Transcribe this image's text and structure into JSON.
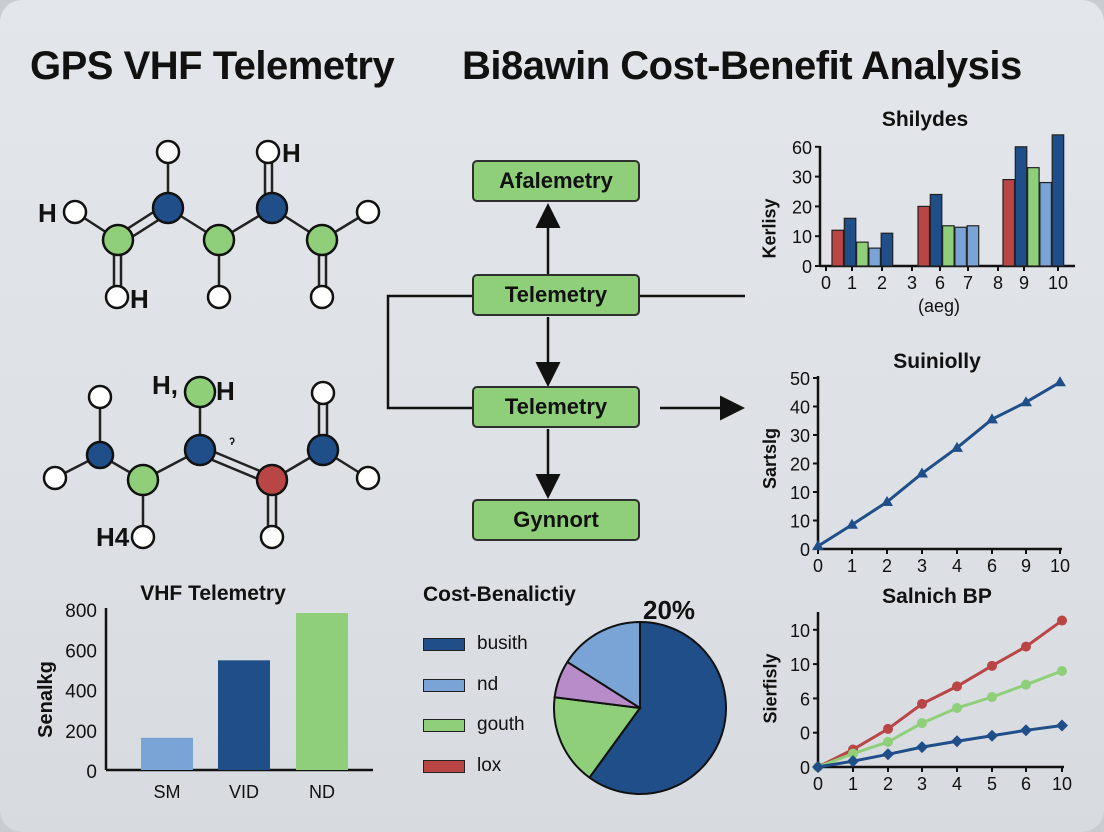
{
  "titles": {
    "left": "GPS VHF Telemetry",
    "right": "Bi8awin Cost-Benefit Analysis"
  },
  "molecules": {
    "labels": [
      "H",
      "H",
      "H",
      "H,",
      "H",
      "H4",
      "ˀ"
    ]
  },
  "flowchart": {
    "boxes": [
      "Afalemetry",
      "Telemetry",
      "Telemetry",
      "Gynnort"
    ],
    "box_color": "#8fcf79"
  },
  "colors": {
    "dark_blue": "#1f4e89",
    "light_blue": "#7aa3d6",
    "green": "#8fcf79",
    "red": "#b94545",
    "purple": "#b88cc8"
  },
  "chart_data": [
    {
      "type": "bar",
      "title": "Shilydes",
      "ylabel": "Kerlisy",
      "xlabel": "(aeg)",
      "x_tick_labels": [
        "0",
        "1",
        "2",
        "3",
        "6",
        "7",
        "8",
        "9",
        "10"
      ],
      "y_tick_labels": [
        "0",
        "10",
        "20",
        "30",
        "60"
      ],
      "groups": [
        {
          "values": [
            12,
            16,
            8,
            6,
            11
          ],
          "colors": [
            "#b94545",
            "#1f4e89",
            "#8fcf79",
            "#7aa3d6",
            "#1f4e89"
          ]
        },
        {
          "values": [
            20,
            24,
            13.5,
            13,
            13.5
          ],
          "colors": [
            "#b94545",
            "#1f4e89",
            "#8fcf79",
            "#7aa3d6",
            "#7aa3d6"
          ]
        },
        {
          "values": [
            29,
            60,
            39,
            28,
            72
          ],
          "colors": [
            "#b94545",
            "#1f4e89",
            "#8fcf79",
            "#7aa3d6",
            "#1f4e89"
          ]
        }
      ]
    },
    {
      "type": "line",
      "title": "Suiniolly",
      "ylabel": "Sartslg",
      "x_tick_labels": [
        "0",
        "1",
        "2",
        "3",
        "4",
        "6",
        "9",
        "10"
      ],
      "y_tick_labels": [
        "0",
        "10",
        "10",
        "20",
        "30",
        "40",
        "50"
      ],
      "series": [
        {
          "color": "#1f4e89",
          "marker": "triangle",
          "values": [
            0.1,
            0.85,
            1.65,
            2.65,
            3.55,
            4.55,
            5.15,
            5.85
          ]
        }
      ]
    },
    {
      "type": "line",
      "title": "Salnich BP",
      "ylabel": "Sierfisly",
      "x_tick_labels": [
        "0",
        "1",
        "2",
        "3",
        "4",
        "5",
        "6",
        "10"
      ],
      "y_tick_labels": [
        "0",
        "0",
        "6",
        "10",
        "10"
      ],
      "series": [
        {
          "color": "#b94545",
          "marker": "circle",
          "values": [
            0,
            0.51,
            1.11,
            1.84,
            2.35,
            2.95,
            3.51,
            4.27
          ]
        },
        {
          "color": "#8fcf79",
          "marker": "circle",
          "values": [
            0,
            0.39,
            0.73,
            1.28,
            1.72,
            2.04,
            2.4,
            2.8
          ]
        },
        {
          "color": "#1f4e89",
          "marker": "diamond",
          "values": [
            0,
            0.17,
            0.37,
            0.58,
            0.75,
            0.91,
            1.07,
            1.21
          ]
        }
      ]
    },
    {
      "type": "bar",
      "title": "VHF Telemetry",
      "ylabel": "Senalkg",
      "categories": [
        "SM",
        "VID",
        "ND"
      ],
      "values": [
        160,
        545,
        780
      ],
      "colors": [
        "#7aa3d6",
        "#1f4e89",
        "#8fcf79"
      ],
      "y_tick_labels": [
        "0",
        "200",
        "400",
        "600",
        "800"
      ],
      "ylim": [
        0,
        800
      ]
    },
    {
      "type": "pie",
      "title": "Cost-Benalictiy",
      "annotation": "20%",
      "legend": [
        {
          "label": "busith",
          "color": "#1f4e89"
        },
        {
          "label": "nd",
          "color": "#7aa3d6"
        },
        {
          "label": "gouth",
          "color": "#8fcf79"
        },
        {
          "label": "lox",
          "color": "#b94545"
        }
      ],
      "slices": [
        {
          "value": 60,
          "color": "#1f4e89"
        },
        {
          "value": 17,
          "color": "#8fcf79"
        },
        {
          "value": 7,
          "color": "#b88cc8"
        },
        {
          "value": 16,
          "color": "#7aa3d6"
        }
      ]
    }
  ]
}
